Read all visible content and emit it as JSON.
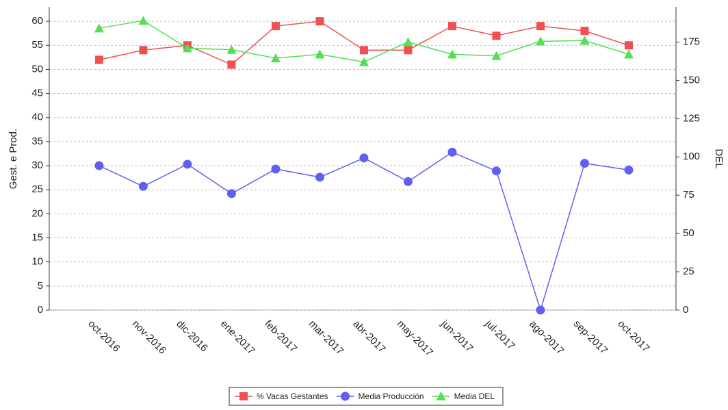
{
  "chart_data": {
    "type": "line",
    "categories": [
      "oct-2016",
      "nov-2016",
      "dic-2016",
      "ene-2017",
      "feb-2017",
      "mar-2017",
      "abr-2017",
      "may-2017",
      "jun-2017",
      "jul-2017",
      "ago-2017",
      "sep-2017",
      "oct-2017"
    ],
    "series": [
      {
        "name": "% Vacas Gestantes",
        "color": "#f05050",
        "marker": "square",
        "values": [
          52,
          54,
          55,
          51,
          59,
          60,
          54,
          54,
          59,
          57,
          59,
          58,
          55
        ]
      },
      {
        "name": "Media Producción",
        "color": "#6060f0",
        "marker": "circle",
        "values": [
          30,
          25.7,
          30.3,
          24.2,
          29.3,
          27.6,
          31.6,
          26.7,
          32.8,
          28.9,
          0,
          30.5,
          29.1
        ]
      },
      {
        "name": "Media DEL",
        "color": "#50e050",
        "marker": "triangle",
        "axis": "y2",
        "values": [
          184,
          189,
          171,
          170,
          164.5,
          167,
          162,
          175,
          167,
          166,
          175.5,
          176,
          167
        ]
      }
    ],
    "ylabel": "Gest. e Prod.",
    "y2label": "DEL",
    "ylim": [
      0,
      63
    ],
    "yticks": [
      0,
      5,
      10,
      15,
      20,
      25,
      30,
      35,
      40,
      45,
      50,
      55,
      60
    ],
    "y2lim": [
      0,
      198
    ],
    "y2ticks": [
      0,
      25,
      50,
      75,
      100,
      125,
      150,
      175
    ],
    "grid": true,
    "legend": "bottom"
  }
}
